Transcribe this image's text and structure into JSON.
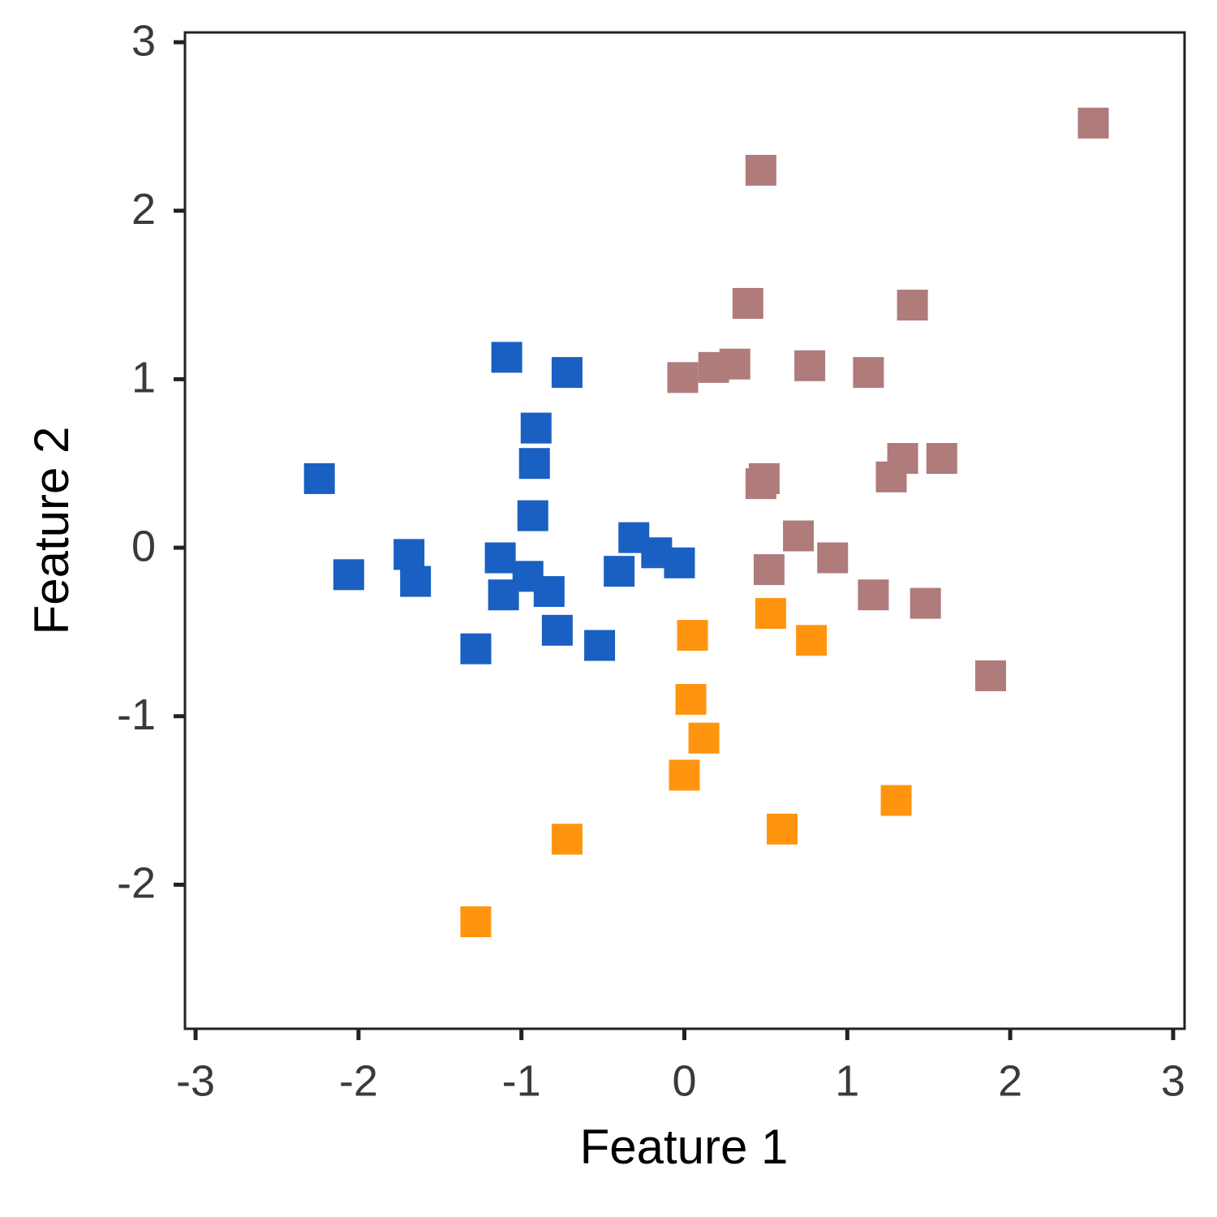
{
  "chart_data": {
    "type": "scatter",
    "x_label": "Feature 1",
    "y_label": "Feature 2",
    "xlim": [
      -3.065,
      3.07
    ],
    "ylim": [
      -2.855,
      3.058
    ],
    "xticks": [
      -3,
      -2,
      -1,
      0,
      1,
      2,
      3
    ],
    "yticks": [
      -2,
      -1,
      0,
      1,
      2,
      3
    ],
    "marker": "square",
    "series": [
      {
        "color": "#1a5fc2",
        "x": [
          -2.24,
          -1.09,
          -0.72,
          -0.91,
          -0.92,
          -0.93,
          -2.06,
          -1.69,
          -1.65,
          -1.13,
          -1.11,
          -0.96,
          -0.83,
          -0.78,
          -1.28,
          -0.52,
          -0.4,
          -0.31,
          -0.17,
          -0.03
        ],
        "values": [
          0.41,
          1.13,
          1.04,
          0.71,
          0.5,
          0.19,
          -0.16,
          -0.04,
          -0.2,
          -0.06,
          -0.28,
          -0.17,
          -0.26,
          -0.49,
          -0.6,
          -0.58,
          -0.14,
          0.06,
          -0.03,
          -0.09
        ]
      },
      {
        "color": "#ff950e",
        "x": [
          0.05,
          0.53,
          0.78,
          0.04,
          0.12,
          0.0,
          1.3,
          0.6,
          -0.72,
          -1.28
        ],
        "values": [
          -0.52,
          -0.39,
          -0.55,
          -0.9,
          -1.13,
          -1.35,
          -1.5,
          -1.67,
          -1.73,
          -2.22
        ]
      },
      {
        "color": "#b07b7b",
        "x": [
          2.51,
          0.47,
          0.39,
          1.4,
          -0.01,
          0.18,
          0.31,
          0.77,
          1.13,
          1.34,
          1.58,
          1.27,
          0.47,
          0.49,
          0.7,
          0.91,
          0.52,
          1.16,
          1.48,
          1.88
        ],
        "values": [
          2.52,
          2.24,
          1.45,
          1.44,
          1.01,
          1.07,
          1.09,
          1.08,
          1.04,
          0.53,
          0.53,
          0.42,
          0.38,
          0.41,
          0.07,
          -0.06,
          -0.13,
          -0.28,
          -0.33,
          -0.76
        ]
      }
    ]
  }
}
